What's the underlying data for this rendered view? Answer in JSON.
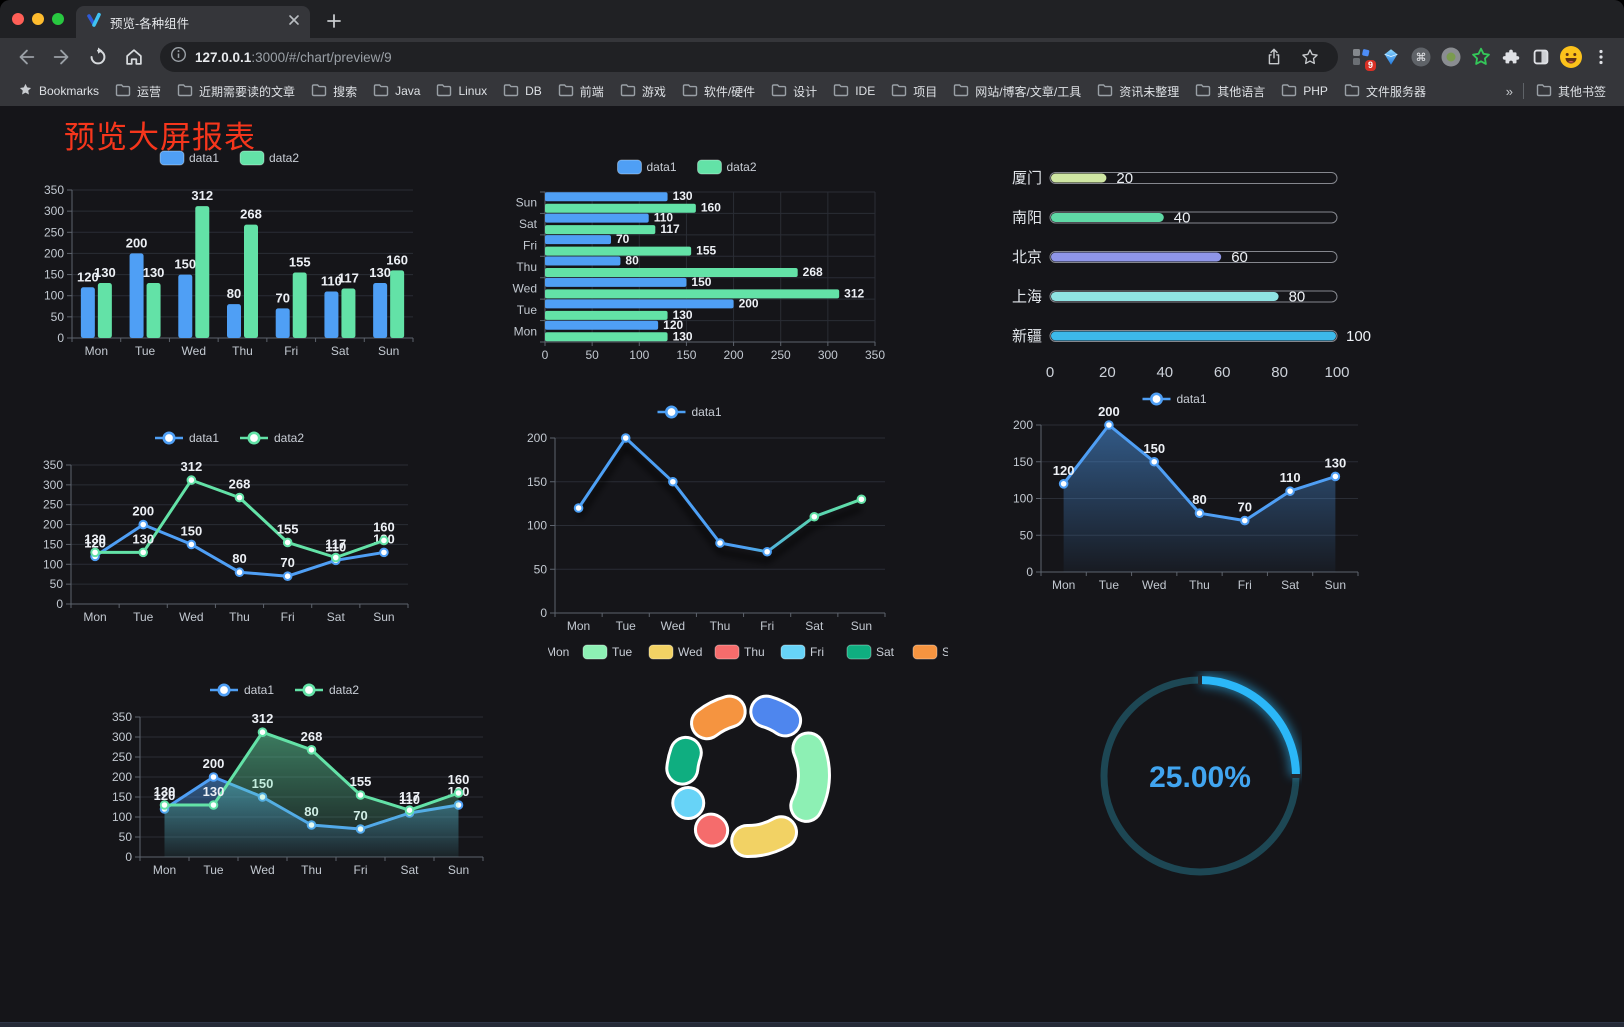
{
  "browser": {
    "tab_title": "预览-各种组件",
    "url_host": "127.0.0.1",
    "url_rest": ":3000/#/chart/preview/9",
    "bookmarks_label": "Bookmarks",
    "bookmarks": [
      "运营",
      "近期需要读的文章",
      "搜索",
      "Java",
      "Linux",
      "DB",
      "前端",
      "游戏",
      "软件/硬件",
      "设计",
      "IDE",
      "项目",
      "网站/博客/文章/工具",
      "资讯未整理",
      "其他语言",
      "PHP",
      "文件服务器"
    ],
    "bookmarks_overflow": "»",
    "other_bookmarks": "其他书签",
    "extension_badge": "9"
  },
  "page": {
    "title": "预览大屏报表",
    "title_color": "#f6361c"
  },
  "chart_data": [
    {
      "id": "bar-grouped",
      "type": "bar",
      "categories": [
        "Mon",
        "Tue",
        "Wed",
        "Thu",
        "Fri",
        "Sat",
        "Sun"
      ],
      "series": [
        {
          "name": "data1",
          "color": "#4f9ff5",
          "values": [
            120,
            200,
            150,
            80,
            70,
            110,
            130
          ]
        },
        {
          "name": "data2",
          "color": "#63e2a7",
          "values": [
            130,
            130,
            312,
            268,
            155,
            117,
            160
          ]
        }
      ],
      "ylim": [
        0,
        350
      ],
      "ystep": 50,
      "value_labels": true,
      "legend_position": "top",
      "grid": true
    },
    {
      "id": "bar-horizontal",
      "type": "hbar",
      "categories_top_to_bottom": [
        "Sun",
        "Sat",
        "Fri",
        "Thu",
        "Wed",
        "Tue",
        "Mon"
      ],
      "series": [
        {
          "name": "data1",
          "color": "#4f9ff5",
          "values": [
            130,
            110,
            70,
            80,
            150,
            200,
            120
          ]
        },
        {
          "name": "data2",
          "color": "#63e2a7",
          "values": [
            160,
            117,
            155,
            268,
            312,
            130,
            130
          ]
        }
      ],
      "xlim": [
        0,
        350
      ],
      "xstep": 50,
      "value_labels": true,
      "legend_position": "top"
    },
    {
      "id": "progress-bars",
      "type": "progress",
      "max": 100,
      "xticks": [
        0,
        20,
        40,
        60,
        80,
        100
      ],
      "rows": [
        {
          "label": "厦门",
          "value": 20,
          "color": "#cfe6a3"
        },
        {
          "label": "南阳",
          "value": 40,
          "color": "#5fd9a6"
        },
        {
          "label": "北京",
          "value": 60,
          "color": "#8f96e8"
        },
        {
          "label": "上海",
          "value": 80,
          "color": "#8fe3e3"
        },
        {
          "label": "新疆",
          "value": 100,
          "color": "#3db9ea"
        }
      ]
    },
    {
      "id": "line-two-series",
      "type": "line",
      "categories": [
        "Mon",
        "Tue",
        "Wed",
        "Thu",
        "Fri",
        "Sat",
        "Sun"
      ],
      "series": [
        {
          "name": "data1",
          "color": "#4f9ff5",
          "values": [
            120,
            200,
            150,
            80,
            70,
            110,
            130
          ]
        },
        {
          "name": "data2",
          "color": "#63e2a7",
          "values": [
            130,
            130,
            312,
            268,
            155,
            117,
            160
          ]
        }
      ],
      "ylim": [
        0,
        350
      ],
      "ystep": 50,
      "value_labels": true,
      "legend_position": "top"
    },
    {
      "id": "line-gradient",
      "type": "line",
      "categories": [
        "Mon",
        "Tue",
        "Wed",
        "Thu",
        "Fri",
        "Sat",
        "Sun"
      ],
      "series": [
        {
          "name": "data1",
          "color": "#4da0f5",
          "color_end": "#63e2a7",
          "values": [
            120,
            200,
            150,
            80,
            70,
            110,
            130
          ]
        }
      ],
      "ylim": [
        0,
        200
      ],
      "ystep": 50,
      "value_labels": false,
      "shadow": true,
      "legend_position": "top"
    },
    {
      "id": "line-area",
      "type": "line",
      "categories": [
        "Mon",
        "Tue",
        "Wed",
        "Thu",
        "Fri",
        "Sat",
        "Sun"
      ],
      "series": [
        {
          "name": "data1",
          "color": "#4f9ff5",
          "area": true,
          "values": [
            120,
            200,
            150,
            80,
            70,
            110,
            130
          ]
        }
      ],
      "ylim": [
        0,
        200
      ],
      "ystep": 50,
      "value_labels": true,
      "legend_position": "top"
    },
    {
      "id": "line-area-two",
      "type": "line",
      "categories": [
        "Mon",
        "Tue",
        "Wed",
        "Thu",
        "Fri",
        "Sat",
        "Sun"
      ],
      "series": [
        {
          "name": "data1",
          "color": "#4f9ff5",
          "area": true,
          "values": [
            120,
            200,
            150,
            80,
            70,
            110,
            130
          ]
        },
        {
          "name": "data2",
          "color": "#63e2a7",
          "area": true,
          "values": [
            130,
            130,
            312,
            268,
            155,
            117,
            160
          ]
        }
      ],
      "ylim": [
        0,
        350
      ],
      "ystep": 50,
      "value_labels": true,
      "legend_position": "top"
    },
    {
      "id": "donut",
      "type": "pie",
      "items": [
        {
          "label": "Mon",
          "value": 120,
          "color": "#4e86ee"
        },
        {
          "label": "Tue",
          "value": 200,
          "color": "#8df0b4"
        },
        {
          "label": "Wed",
          "value": 150,
          "color": "#f2d264"
        },
        {
          "label": "Thu",
          "value": 80,
          "color": "#f56c6c"
        },
        {
          "label": "Fri",
          "value": 70,
          "color": "#67d3f7"
        },
        {
          "label": "Sat",
          "value": 110,
          "color": "#0fae80"
        },
        {
          "label": "Sun",
          "value": 130,
          "color": "#f59440"
        }
      ],
      "legend_position": "top"
    },
    {
      "id": "gauge",
      "type": "gauge",
      "value": 25,
      "label": "25.00%",
      "progress_color": "#2bb7f8",
      "track_color": "#1d4754",
      "text_color": "#41a5f0"
    }
  ]
}
